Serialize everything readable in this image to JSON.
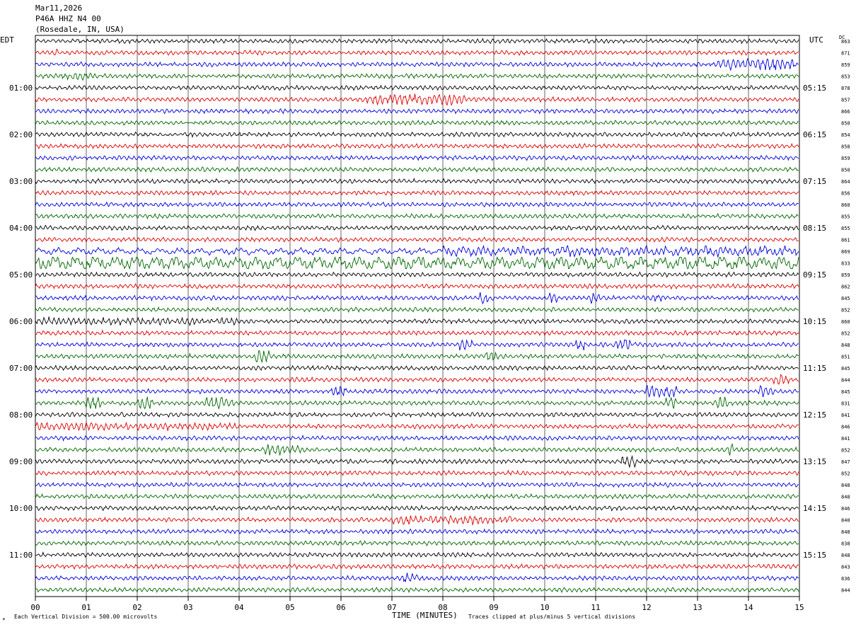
{
  "header": {
    "date": "Mar11,2026",
    "station": "P46A HHZ N4 00",
    "location": "(Rosedale, IN, USA)"
  },
  "left_tz": "EDT",
  "right_tz": "UTC",
  "dc_label": "DC",
  "footer": {
    "mark": "✴",
    "scale_note": "Each Vertical Division =  500.00 microvolts",
    "xlabel": "TIME (MINUTES)",
    "clip_note": "Traces clipped at plus/minus 5 vertical divisions"
  },
  "colors": {
    "trace_cycle": [
      "#000000",
      "#dd0000",
      "#0000dd",
      "#006600"
    ],
    "grid": "#000000"
  },
  "chart_data": {
    "type": "line",
    "title": "P46A HHZ N4 00",
    "xlabel": "TIME (MINUTES)",
    "xlim": [
      0,
      15
    ],
    "x_ticks": [
      "00",
      "01",
      "02",
      "03",
      "04",
      "05",
      "06",
      "07",
      "08",
      "09",
      "10",
      "11",
      "12",
      "13",
      "14",
      "15"
    ],
    "left_hour_labels": [
      "01:00",
      "02:00",
      "03:00",
      "04:00",
      "05:00",
      "06:00",
      "07:00",
      "08:00",
      "09:00",
      "10:00",
      "11:00"
    ],
    "right_hour_labels": [
      "05:15",
      "06:15",
      "07:15",
      "08:15",
      "09:15",
      "10:15",
      "11:15",
      "12:15",
      "13:15",
      "14:15",
      "15:15"
    ],
    "dc_offsets": [
      863,
      871,
      859,
      853,
      878,
      857,
      866,
      850,
      854,
      858,
      859,
      850,
      864,
      856,
      860,
      855,
      855,
      861,
      869,
      833,
      859,
      862,
      845,
      852,
      860,
      852,
      848,
      851,
      845,
      844,
      845,
      831,
      841,
      846,
      841,
      852,
      847,
      852,
      848,
      848,
      846,
      840,
      848,
      838,
      848,
      843,
      836,
      844
    ],
    "grid": true
  }
}
